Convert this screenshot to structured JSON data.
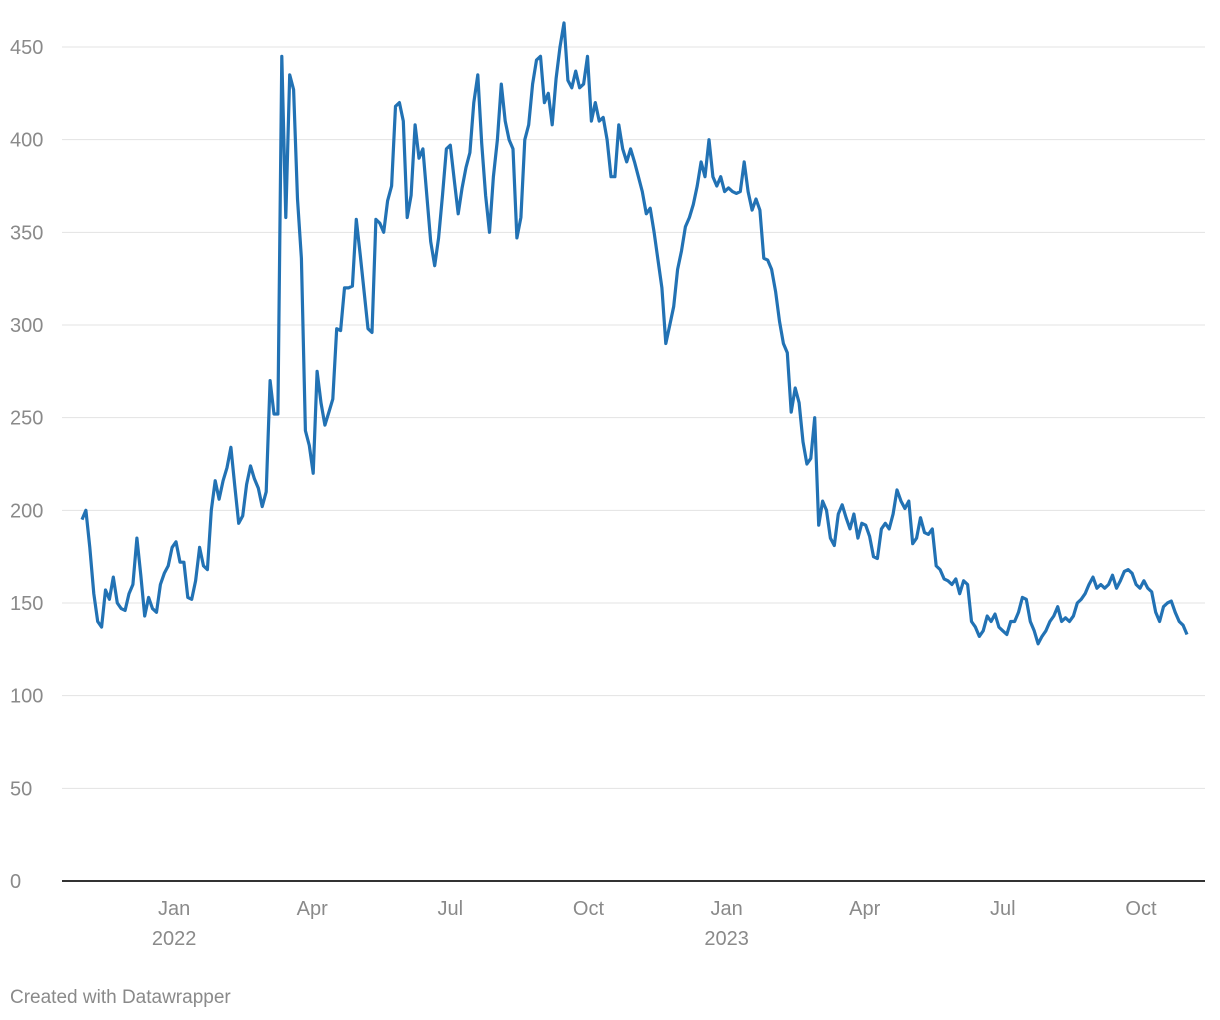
{
  "chart_data": {
    "type": "line",
    "series": [
      {
        "color": "#2272b4",
        "values": [
          195,
          200,
          180,
          155,
          140,
          137,
          157,
          152,
          164,
          150,
          147,
          146,
          155,
          160,
          185,
          165,
          143,
          153,
          147,
          145,
          160,
          166,
          170,
          180,
          183,
          172,
          172,
          153,
          152,
          162,
          180,
          170,
          168,
          200,
          216,
          206,
          216,
          223,
          234,
          213,
          193,
          197,
          214,
          224,
          217,
          212,
          202,
          210,
          270,
          252,
          252,
          445,
          358,
          435,
          427,
          368,
          336,
          243,
          235,
          220,
          275,
          258,
          246,
          253,
          260,
          298,
          297,
          320,
          320,
          321,
          357,
          338,
          318,
          298,
          296,
          357,
          355,
          350,
          367,
          375,
          418,
          420,
          410,
          358,
          370,
          408,
          390,
          395,
          370,
          345,
          332,
          347,
          370,
          395,
          397,
          378,
          360,
          374,
          385,
          393,
          420,
          435,
          398,
          370,
          350,
          380,
          400,
          430,
          410,
          400,
          395,
          347,
          358,
          400,
          408,
          430,
          443,
          445,
          420,
          425,
          408,
          433,
          450,
          463,
          432,
          428,
          437,
          428,
          430,
          445,
          410,
          420,
          410,
          412,
          400,
          380,
          380,
          408,
          395,
          388,
          395,
          388,
          380,
          372,
          360,
          363,
          350,
          335,
          320,
          290,
          300,
          310,
          330,
          340,
          353,
          358,
          365,
          375,
          388,
          380,
          400,
          380,
          375,
          380,
          372,
          374,
          372,
          371,
          372,
          388,
          372,
          362,
          368,
          362,
          336,
          335,
          330,
          318,
          302,
          290,
          285,
          253,
          266,
          258,
          237,
          225,
          228,
          250,
          192,
          205,
          200,
          185,
          181,
          198,
          203,
          196,
          190,
          198,
          185,
          193,
          192,
          186,
          175,
          174,
          190,
          193,
          190,
          198,
          211,
          205,
          201,
          205,
          182,
          185,
          196,
          188,
          187,
          190,
          170,
          168,
          163,
          162,
          160,
          163,
          155,
          162,
          160,
          140,
          137,
          132,
          135,
          143,
          140,
          144,
          137,
          135,
          133,
          140,
          140,
          145,
          153,
          152,
          140,
          135,
          128,
          132,
          135,
          140,
          143,
          148,
          140,
          142,
          140,
          143,
          150,
          152,
          155,
          160,
          164,
          158,
          160,
          158,
          160,
          165,
          158,
          162,
          167,
          168,
          166,
          160,
          158,
          162,
          158,
          156,
          145,
          140,
          148,
          150,
          151,
          145,
          140,
          138,
          133
        ]
      }
    ],
    "xlim": [
      "2021-11",
      "2023-11"
    ],
    "xticks": [
      {
        "value": "2022-01",
        "label": "Jan 2022"
      },
      {
        "value": "2022-04",
        "label": "Apr"
      },
      {
        "value": "2022-07",
        "label": "Jul"
      },
      {
        "value": "2022-10",
        "label": "Oct"
      },
      {
        "value": "2023-01",
        "label": "Jan 2023"
      },
      {
        "value": "2023-04",
        "label": "Apr"
      },
      {
        "value": "2023-07",
        "label": "Jul"
      },
      {
        "value": "2023-10",
        "label": "Oct"
      }
    ],
    "ylim": [
      0,
      450
    ],
    "yticks": [
      0,
      50,
      100,
      150,
      200,
      250,
      300,
      350,
      400,
      450
    ],
    "grid": true,
    "footer": "Created with Datawrapper"
  }
}
